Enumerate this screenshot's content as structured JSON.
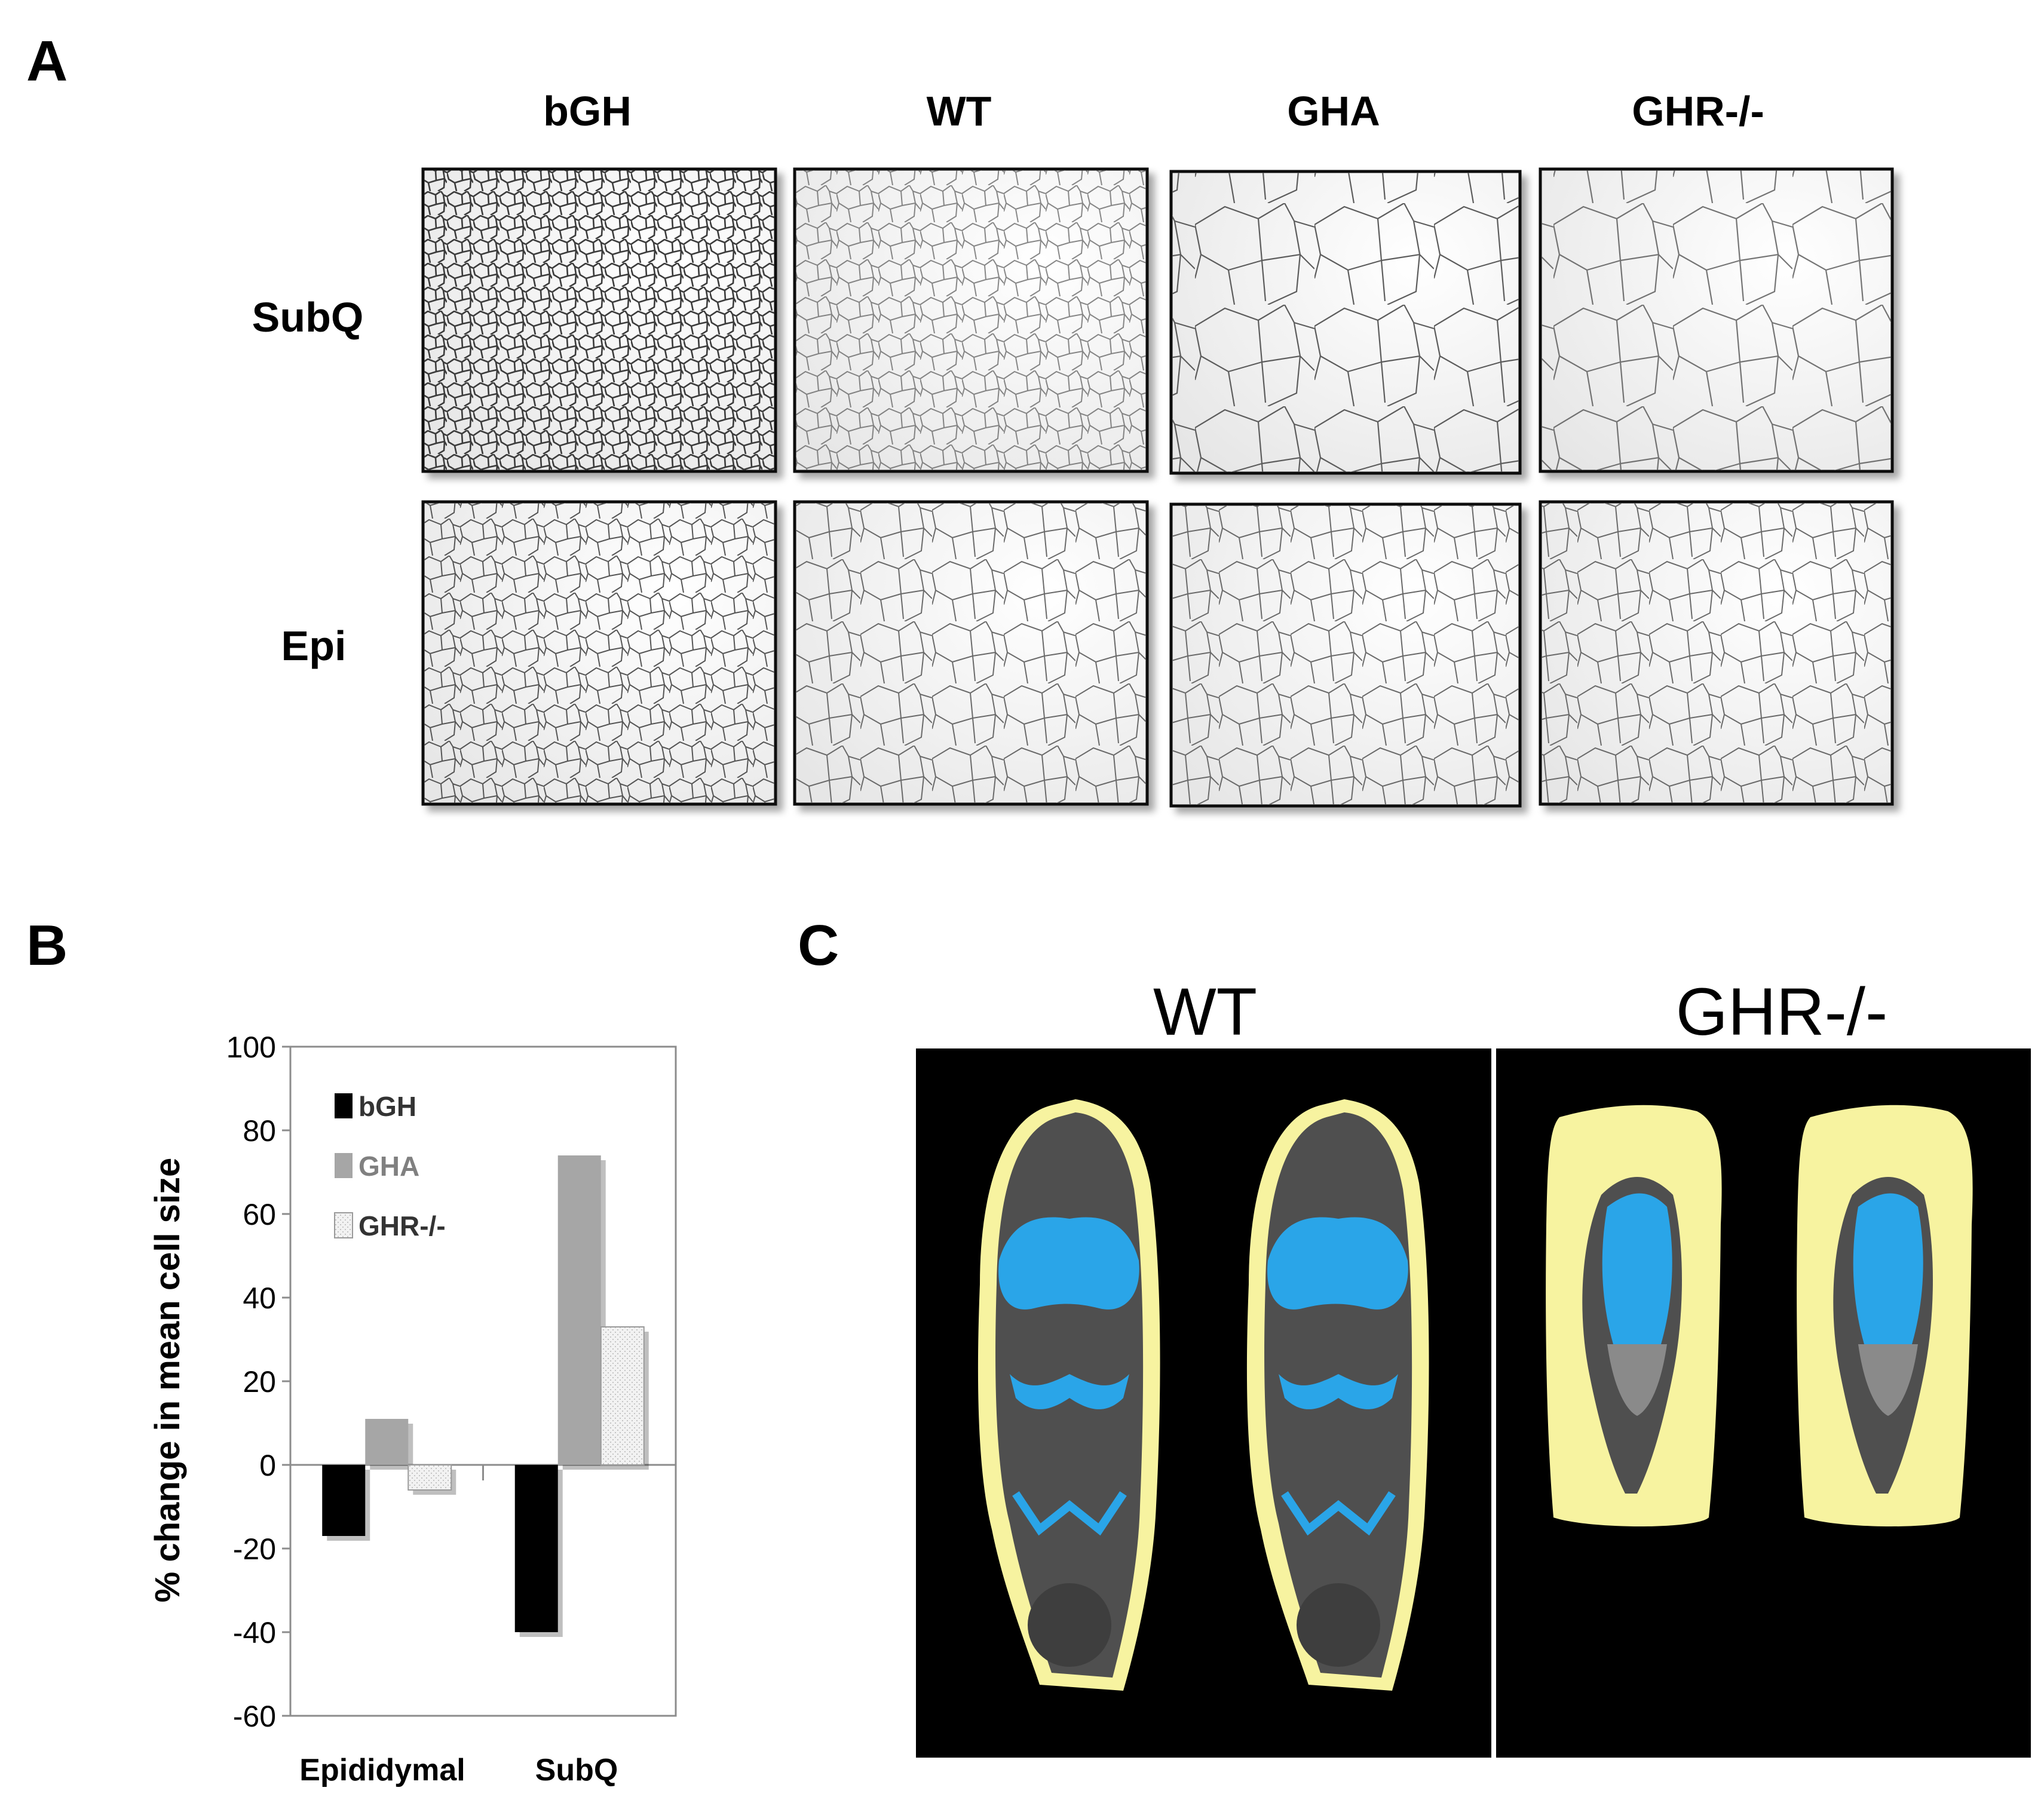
{
  "panel_a": {
    "letter": "A",
    "columns": [
      "bGH",
      "WT",
      "GHA",
      "GHR-/-"
    ],
    "rows": [
      "SubQ",
      "Epi"
    ]
  },
  "panel_b": {
    "letter": "B"
  },
  "panel_c": {
    "letter": "C",
    "groups": [
      "WT",
      "GHR-/-"
    ],
    "colors": {
      "fat_subcutaneous": "#f7f3a0",
      "fat_visceral": "#2aa5e8",
      "tissue": "#4f4f4f",
      "background": "#000000"
    }
  },
  "chart_data": {
    "type": "bar",
    "categories": [
      "Epididymal",
      "SubQ"
    ],
    "series": [
      {
        "name": "bGH",
        "values": [
          -17,
          -40
        ],
        "color": "#000000"
      },
      {
        "name": "GHA",
        "values": [
          11,
          74
        ],
        "color": "#a6a6a6"
      },
      {
        "name": "GHR-/-",
        "values": [
          -6,
          33
        ],
        "color": "#e8e8e8"
      }
    ],
    "ylabel": "% change in mean cell size",
    "xlabel": "",
    "ylim": [
      -60,
      100
    ],
    "yticks": [
      100,
      80,
      60,
      40,
      20,
      0,
      -20,
      -40,
      -60
    ],
    "legend_position": "top-left",
    "grid": false
  }
}
